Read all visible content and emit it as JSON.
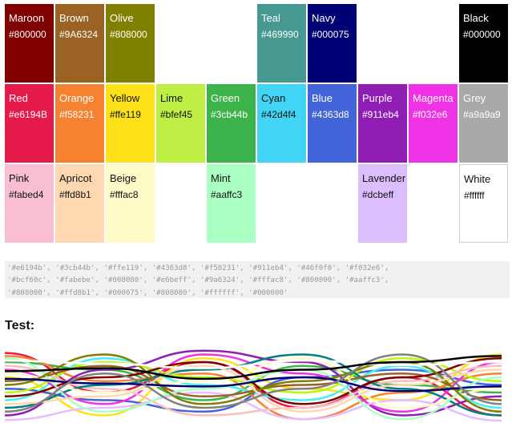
{
  "palette": [
    {
      "name": "Maroon",
      "hex": "#800000"
    },
    {
      "name": "Brown",
      "hex": "#9A6324"
    },
    {
      "name": "Olive",
      "hex": "#808000"
    },
    {
      "name": "Teal",
      "hex": "#469990"
    },
    {
      "name": "Navy",
      "hex": "#000075"
    },
    {
      "name": "Black",
      "hex": "#000000"
    },
    {
      "name": "Red",
      "hex": "#e6194B"
    },
    {
      "name": "Orange",
      "hex": "#f58231"
    },
    {
      "name": "Yellow",
      "hex": "#ffe119"
    },
    {
      "name": "Lime",
      "hex": "#bfef45"
    },
    {
      "name": "Green",
      "hex": "#3cb44b"
    },
    {
      "name": "Cyan",
      "hex": "#42d4f4"
    },
    {
      "name": "Blue",
      "hex": "#4363d8"
    },
    {
      "name": "Purple",
      "hex": "#911eb4"
    },
    {
      "name": "Magenta",
      "hex": "#f032e6"
    },
    {
      "name": "Grey",
      "hex": "#a9a9a9"
    },
    {
      "name": "Pink",
      "hex": "#fabed4"
    },
    {
      "name": "Apricot",
      "hex": "#ffd8b1"
    },
    {
      "name": "Beige",
      "hex": "#fffac8"
    },
    {
      "name": "Mint",
      "hex": "#aaffc3"
    },
    {
      "name": "Lavender",
      "hex": "#dcbeff"
    },
    {
      "name": "White",
      "hex": "#ffffff"
    }
  ],
  "code": {
    "line1": "'#e6194b', '#3cb44b', '#ffe119', '#4363d8', '#f58231', '#911eb4', '#46f0f0', '#f032e6',",
    "line2": "'#bcf60c', '#fabebe', '#008080', '#e6beff', '#9a6324', '#fffac8', '#800000', '#aaffc3',",
    "line3": "'#808000', '#ffd8b1', '#000075', '#808080', '#ffffff', '#000000'"
  },
  "test": {
    "heading": "Test:",
    "line_colors": [
      "#e6194b",
      "#3cb44b",
      "#ffe119",
      "#4363d8",
      "#f58231",
      "#911eb4",
      "#46f0f0",
      "#f032e6",
      "#bcf60c",
      "#fabebe",
      "#008080",
      "#e6beff",
      "#9a6324",
      "#fffac8",
      "#800000",
      "#aaffc3",
      "#808000",
      "#ffd8b1",
      "#000075",
      "#808080",
      "#ffffff",
      "#000000"
    ]
  }
}
